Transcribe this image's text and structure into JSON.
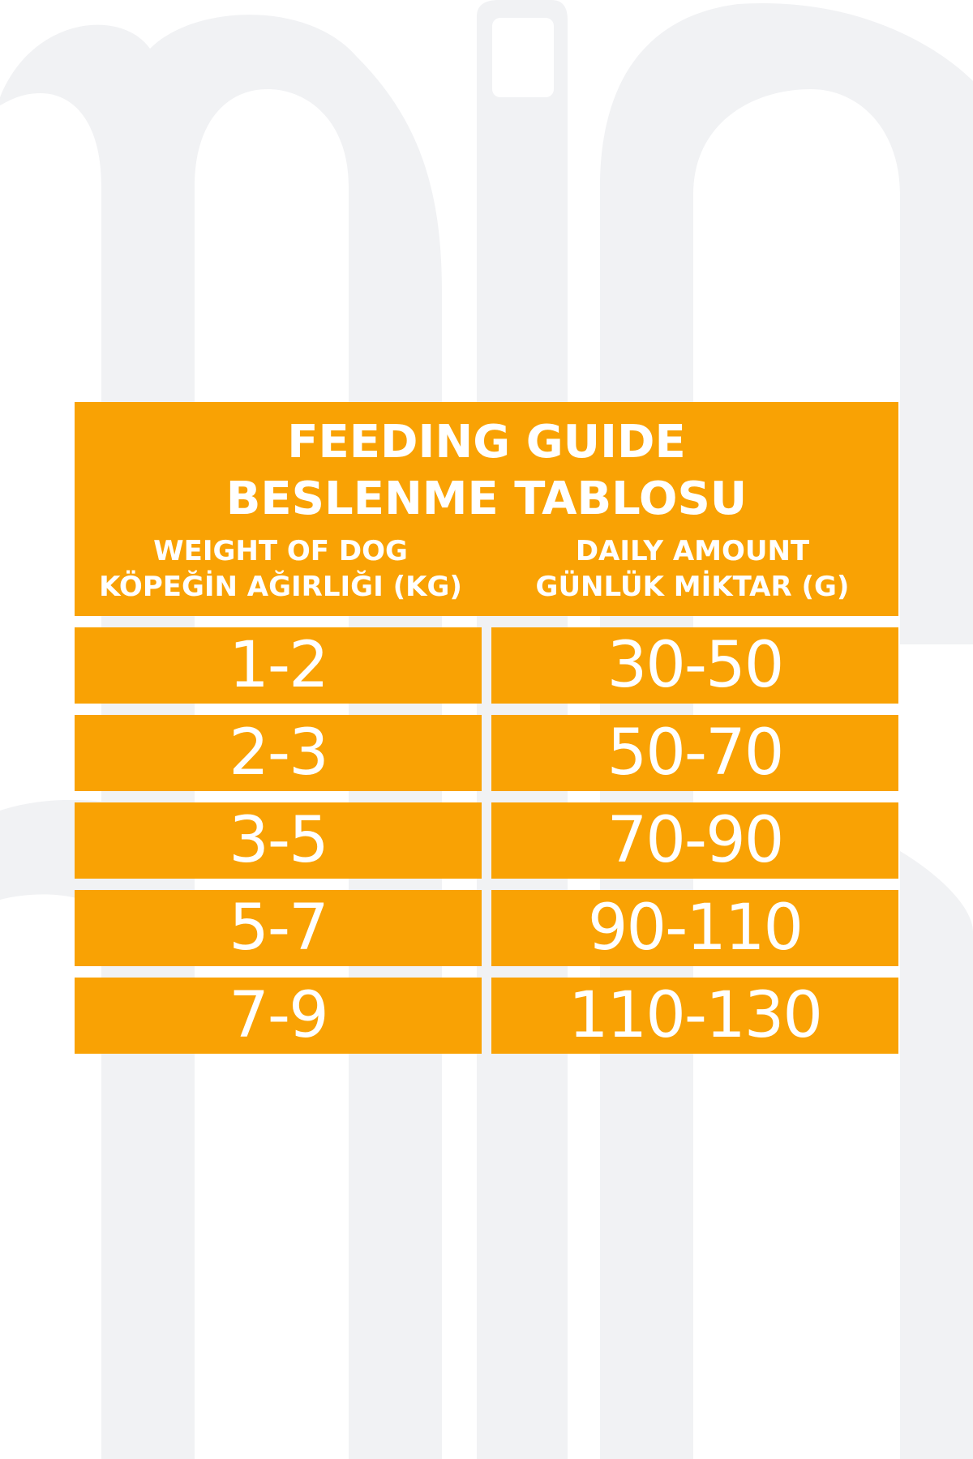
{
  "header": {
    "title_en": "FEEDING GUIDE",
    "title_tr": "BESLENME TABLOSU",
    "weight_en": "WEIGHT OF DOG",
    "weight_tr": "KÖPEĞİN AĞIRLIĞI (KG)",
    "amount_en": "DAILY AMOUNT",
    "amount_tr": "GÜNLÜK MİKTAR (G)"
  },
  "rows": [
    {
      "weight": "1-2",
      "amount": "30-50"
    },
    {
      "weight": "2-3",
      "amount": "50-70"
    },
    {
      "weight": "3-5",
      "amount": "70-90"
    },
    {
      "weight": "5-7",
      "amount": "90-110"
    },
    {
      "weight": "7-9",
      "amount": "110-130"
    }
  ],
  "colors": {
    "accent": "#f9a204",
    "text": "#ffffff",
    "watermark": "#f1f2f4"
  }
}
